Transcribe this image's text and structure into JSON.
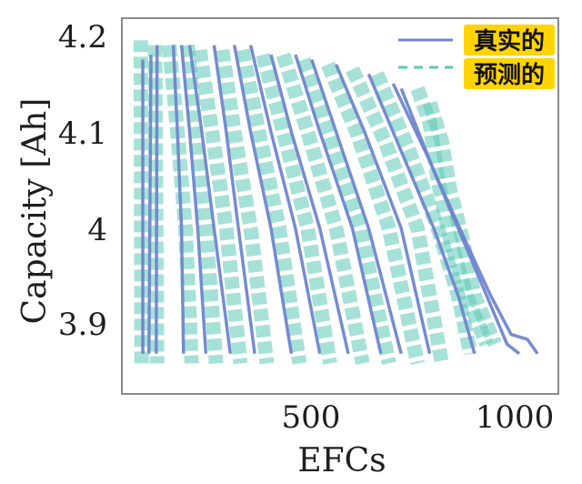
{
  "chart_data": {
    "type": "line",
    "title": "",
    "xlabel": "EFCs",
    "ylabel": "Capacity [Ah]",
    "xlim": [
      0,
      1100
    ],
    "ylim": [
      3.835,
      4.22
    ],
    "x_ticks": [
      500,
      1000
    ],
    "y_ticks": [
      3.9,
      4.0,
      4.1,
      4.2
    ],
    "grid": false,
    "legend_position": "top-right",
    "colors": {
      "true": "#6f86cc",
      "pred": "#5cc9b6",
      "frame": "#8a8a8a"
    },
    "legend": [
      {
        "name": "真实的",
        "style": "solid",
        "color": "#6f86cc"
      },
      {
        "name": "预测的",
        "style": "dashed",
        "color": "#5cc9b6"
      }
    ],
    "series_true": [
      {
        "x": [
          85,
          85
        ],
        "y": [
          4.175,
          3.87
        ]
      },
      {
        "x": [
          105,
          100
        ],
        "y": [
          4.18,
          3.87
        ]
      },
      {
        "x": [
          120,
          118
        ],
        "y": [
          4.19,
          3.87
        ]
      },
      {
        "x": [
          160,
          170,
          180,
          185
        ],
        "y": [
          4.19,
          4.1,
          4.0,
          3.87
        ]
      },
      {
        "x": [
          180,
          200,
          220,
          240
        ],
        "y": [
          4.19,
          4.1,
          4.0,
          3.87
        ]
      },
      {
        "x": [
          200,
          230,
          260,
          300
        ],
        "y": [
          4.19,
          4.1,
          4.0,
          3.87
        ]
      },
      {
        "x": [
          260,
          290,
          320,
          360
        ],
        "y": [
          4.19,
          4.1,
          4.0,
          3.87
        ]
      },
      {
        "x": [
          310,
          350,
          400,
          450
        ],
        "y": [
          4.19,
          4.1,
          4.0,
          3.87
        ]
      },
      {
        "x": [
          350,
          400,
          460,
          520
        ],
        "y": [
          4.19,
          4.1,
          4.0,
          3.87
        ]
      },
      {
        "x": [
          400,
          450,
          520,
          590
        ],
        "y": [
          4.18,
          4.1,
          4.0,
          3.87
        ]
      },
      {
        "x": [
          460,
          520,
          600,
          670
        ],
        "y": [
          4.18,
          4.1,
          4.0,
          3.87
        ]
      },
      {
        "x": [
          500,
          560,
          640,
          720
        ],
        "y": [
          4.175,
          4.1,
          4.0,
          3.87
        ]
      },
      {
        "x": [
          560,
          630,
          720,
          790
        ],
        "y": [
          4.17,
          4.1,
          4.0,
          3.87
        ]
      },
      {
        "x": [
          640,
          720,
          800,
          860,
          900
        ],
        "y": [
          4.16,
          4.08,
          4.0,
          3.93,
          3.87
        ]
      },
      {
        "x": [
          700,
          790,
          870,
          930,
          980,
          1010
        ],
        "y": [
          4.15,
          4.07,
          3.99,
          3.93,
          3.88,
          3.87
        ]
      },
      {
        "x": [
          720,
          800,
          880,
          940,
          990,
          1030,
          1055
        ],
        "y": [
          4.145,
          4.06,
          3.985,
          3.93,
          3.89,
          3.885,
          3.87
        ]
      }
    ],
    "series_pred": [
      {
        "x": [
          80,
          82
        ],
        "y": [
          4.195,
          3.86
        ]
      },
      {
        "x": [
          115,
          120
        ],
        "y": [
          4.19,
          3.86
        ]
      },
      {
        "x": [
          150,
          170,
          190,
          205
        ],
        "y": [
          4.19,
          4.1,
          4.0,
          3.86
        ]
      },
      {
        "x": [
          195,
          215,
          240,
          265
        ],
        "y": [
          4.19,
          4.1,
          4.0,
          3.86
        ]
      },
      {
        "x": [
          225,
          255,
          290,
          325
        ],
        "y": [
          4.185,
          4.1,
          4.0,
          3.86
        ]
      },
      {
        "x": [
          280,
          310,
          350,
          390
        ],
        "y": [
          4.185,
          4.1,
          4.0,
          3.86
        ]
      },
      {
        "x": [
          330,
          370,
          420,
          470
        ],
        "y": [
          4.185,
          4.1,
          4.0,
          3.86
        ]
      },
      {
        "x": [
          380,
          430,
          490,
          545
        ],
        "y": [
          4.18,
          4.1,
          4.0,
          3.86
        ]
      },
      {
        "x": [
          430,
          490,
          560,
          625
        ],
        "y": [
          4.18,
          4.1,
          4.0,
          3.86
        ]
      },
      {
        "x": [
          480,
          540,
          620,
          690
        ],
        "y": [
          4.175,
          4.1,
          4.0,
          3.86
        ]
      },
      {
        "x": [
          540,
          610,
          690,
          760
        ],
        "y": [
          4.17,
          4.1,
          4.0,
          3.86
        ]
      },
      {
        "x": [
          600,
          680,
          760,
          820
        ],
        "y": [
          4.165,
          4.09,
          4.0,
          3.86
        ]
      },
      {
        "x": [
          660,
          740,
          810,
          860,
          890
        ],
        "y": [
          4.16,
          4.08,
          4.0,
          3.93,
          3.87
        ]
      },
      {
        "x": [
          760,
          790,
          810,
          840,
          880,
          930
        ],
        "y": [
          4.145,
          4.11,
          4.05,
          3.99,
          3.93,
          3.88
        ]
      },
      {
        "x": [
          790,
          820,
          840,
          870,
          900,
          950
        ],
        "y": [
          4.13,
          4.09,
          4.04,
          3.99,
          3.93,
          3.88
        ]
      }
    ]
  }
}
